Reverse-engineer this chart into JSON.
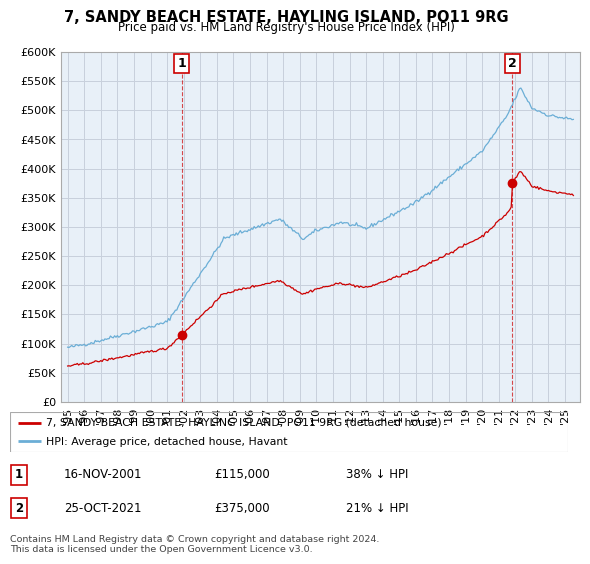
{
  "title": "7, SANDY BEACH ESTATE, HAYLING ISLAND, PO11 9RG",
  "subtitle": "Price paid vs. HM Land Registry's House Price Index (HPI)",
  "ylabel_ticks": [
    "£0",
    "£50K",
    "£100K",
    "£150K",
    "£200K",
    "£250K",
    "£300K",
    "£350K",
    "£400K",
    "£450K",
    "£500K",
    "£550K",
    "£600K"
  ],
  "ytick_values": [
    0,
    50000,
    100000,
    150000,
    200000,
    250000,
    300000,
    350000,
    400000,
    450000,
    500000,
    550000,
    600000
  ],
  "sale1_date": 2001.88,
  "sale1_price": 115000,
  "sale2_date": 2021.81,
  "sale2_price": 375000,
  "legend_line1": "7, SANDY BEACH ESTATE, HAYLING ISLAND, PO11 9RG (detached house)",
  "legend_line2": "HPI: Average price, detached house, Havant",
  "footer": "Contains HM Land Registry data © Crown copyright and database right 2024.\nThis data is licensed under the Open Government Licence v3.0.",
  "hpi_color": "#6baed6",
  "price_color": "#cc0000",
  "vline_color": "#cc0000",
  "bg_fill_color": "#e8f0f8",
  "grid_color": "#c8d0dc"
}
